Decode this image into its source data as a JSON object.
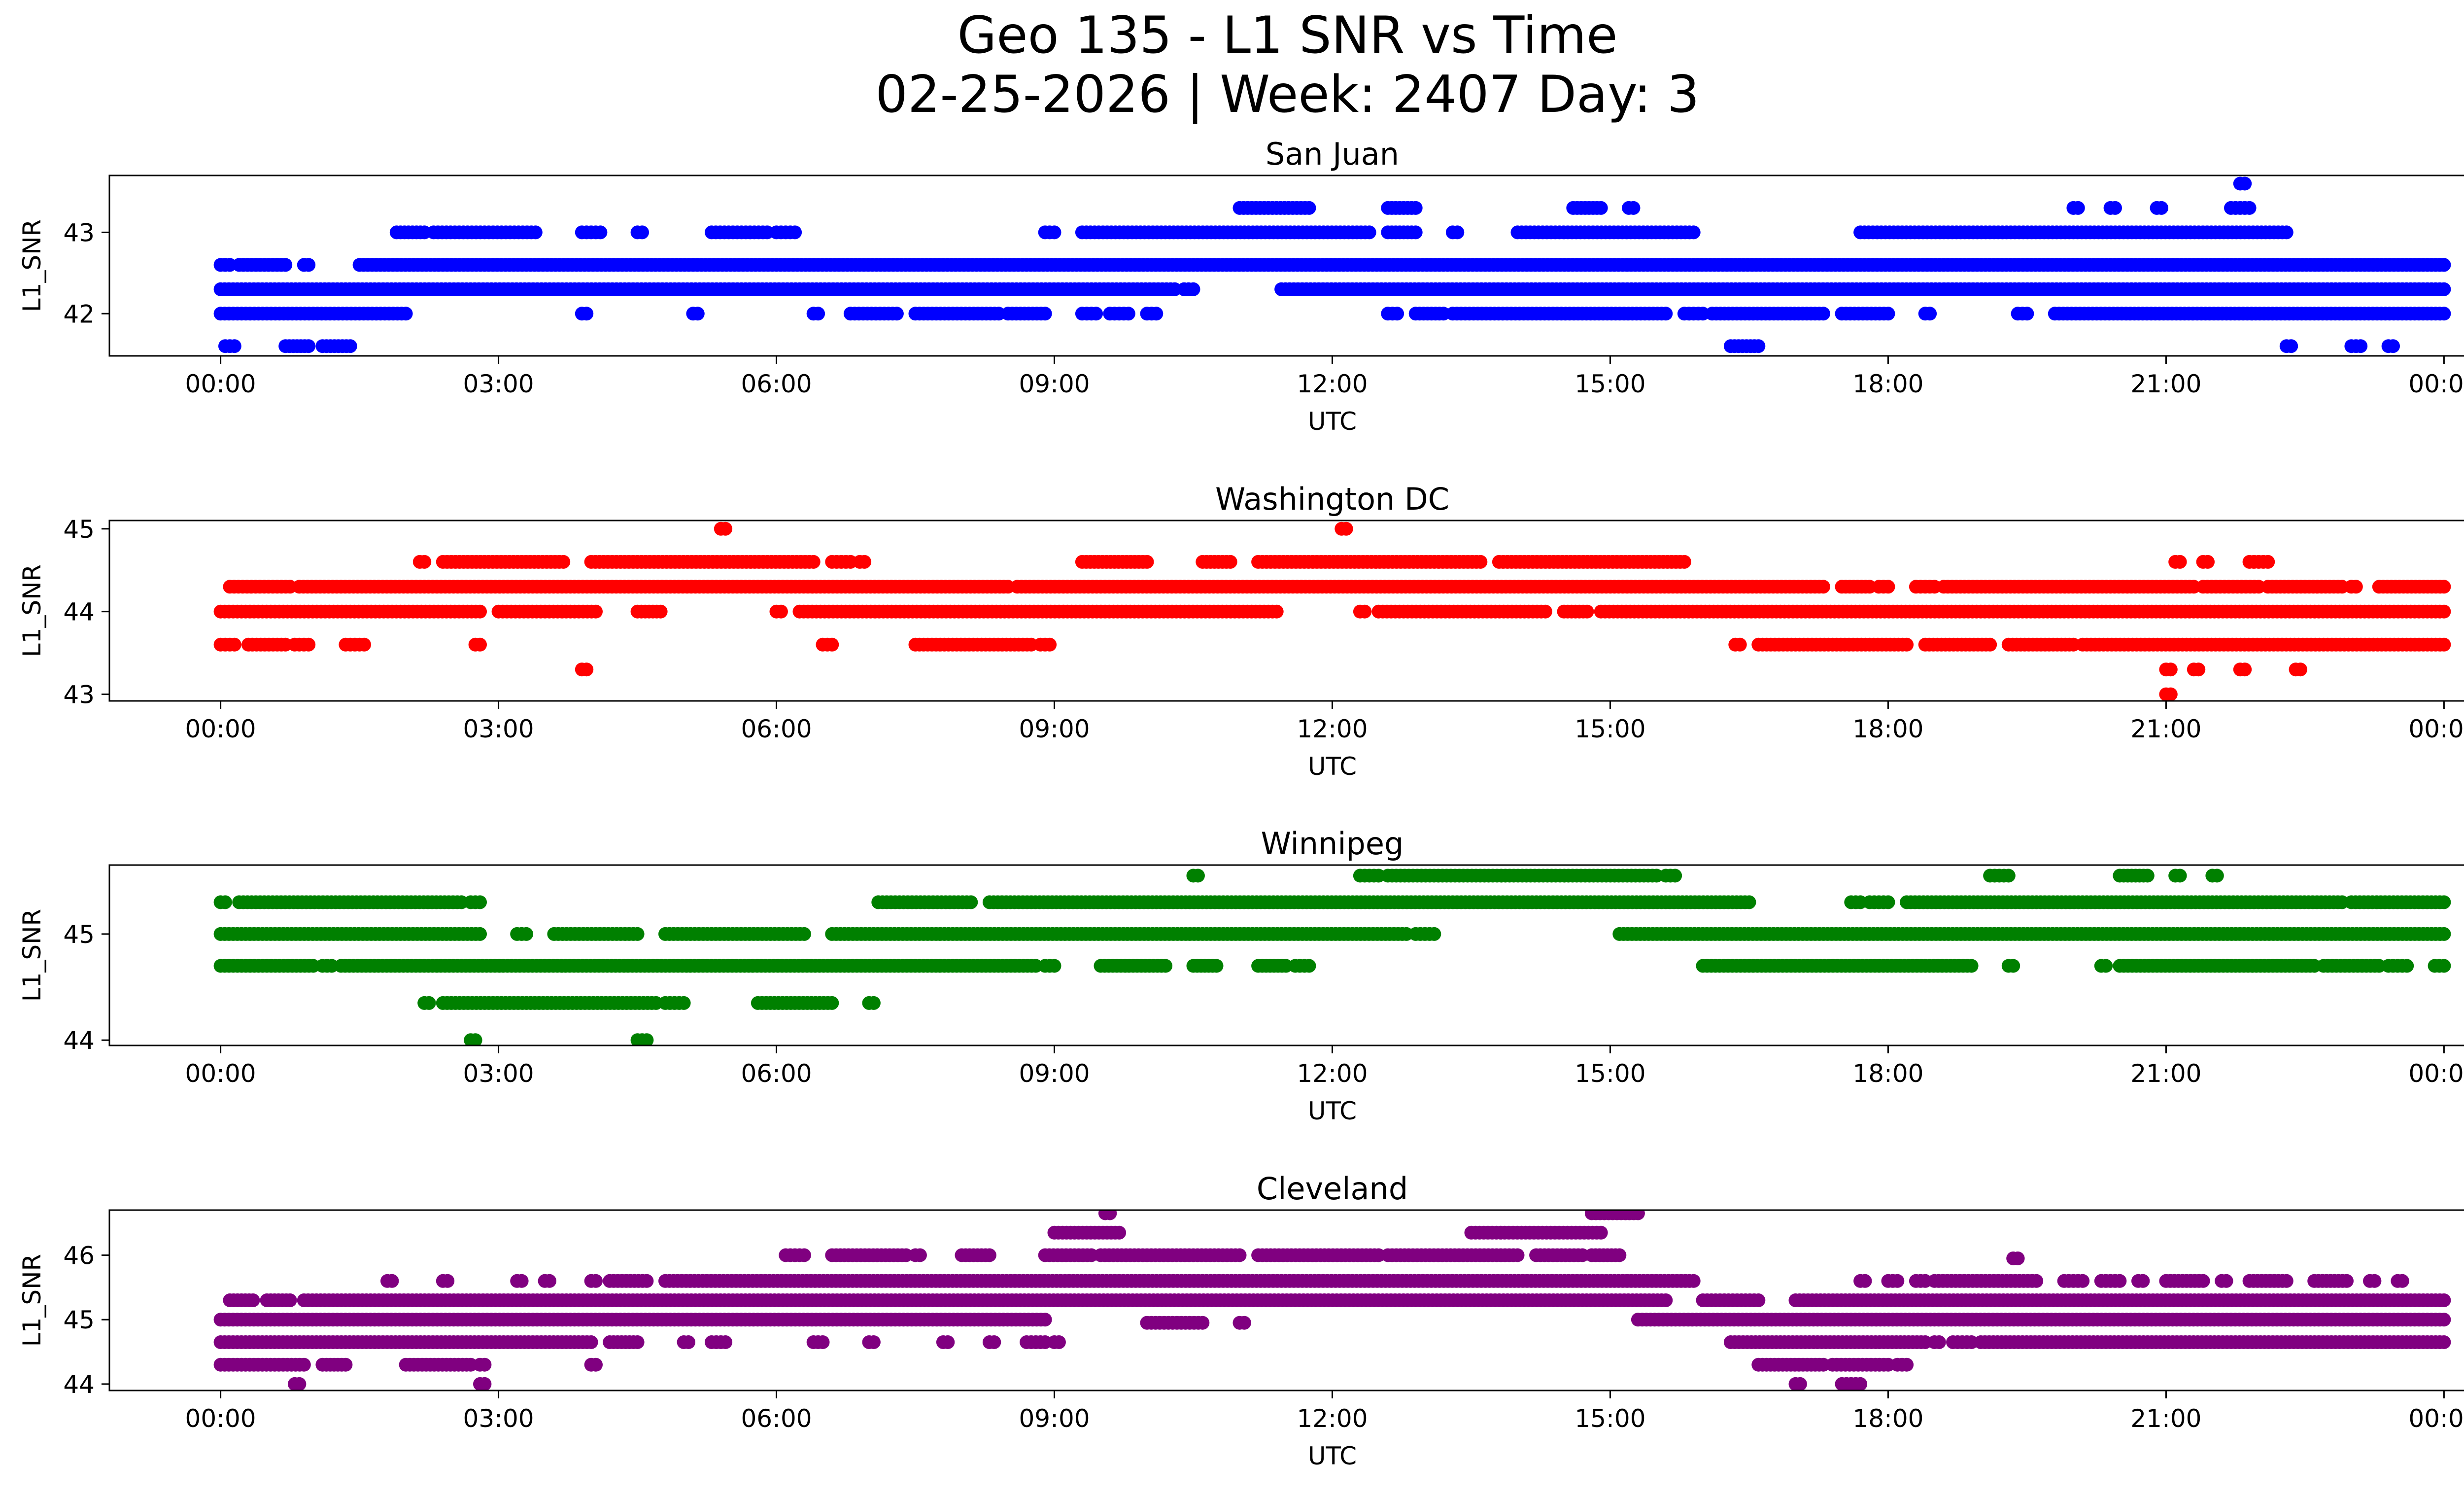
{
  "title_line1": "Geo 135 - L1 SNR vs Time",
  "title_line2": "02-25-2026 | Week: 2407 Day: 3",
  "chart_data": [
    {
      "type": "scatter",
      "title": "San Juan",
      "xlabel": "UTC",
      "ylabel": "L1_SNR",
      "color": "#0000ff",
      "ylim": [
        41.48,
        43.7
      ],
      "yticks": [
        42,
        43
      ],
      "xticks": [
        "00:00",
        "03:00",
        "06:00",
        "09:00",
        "12:00",
        "15:00",
        "18:00",
        "21:00",
        "00:00"
      ],
      "xlim_hours": [
        -1.2,
        25.2
      ],
      "bands": [
        {
          "y": 42.3,
          "segments": [
            [
              0.0,
              10.3
            ],
            [
              10.4,
              10.5
            ],
            [
              11.45,
              24.0
            ]
          ]
        },
        {
          "y": 42.6,
          "segments": [
            [
              0.0,
              0.1
            ],
            [
              0.2,
              0.7
            ],
            [
              0.9,
              0.95
            ],
            [
              1.5,
              24.0
            ]
          ]
        },
        {
          "y": 42.0,
          "segments": [
            [
              0.0,
              2.0
            ],
            [
              3.9,
              3.95
            ],
            [
              5.1,
              5.15
            ],
            [
              6.4,
              6.45
            ],
            [
              6.8,
              7.3
            ],
            [
              7.5,
              8.4
            ],
            [
              8.5,
              8.9
            ],
            [
              9.3,
              9.45
            ],
            [
              9.6,
              9.8
            ],
            [
              10.0,
              10.1
            ],
            [
              12.6,
              12.7
            ],
            [
              12.9,
              13.2
            ],
            [
              13.3,
              15.6
            ],
            [
              15.8,
              16.0
            ],
            [
              16.1,
              17.3
            ],
            [
              17.5,
              18.0
            ],
            [
              18.4,
              18.45
            ],
            [
              19.4,
              19.5
            ],
            [
              19.8,
              24.0
            ]
          ]
        },
        {
          "y": 43.0,
          "segments": [
            [
              1.9,
              2.2
            ],
            [
              2.3,
              3.4
            ],
            [
              3.9,
              4.1
            ],
            [
              4.5,
              4.55
            ],
            [
              5.3,
              5.9
            ],
            [
              6.0,
              6.2
            ],
            [
              8.9,
              9.0
            ],
            [
              9.3,
              12.4
            ],
            [
              12.6,
              12.9
            ],
            [
              13.3,
              13.35
            ],
            [
              14.0,
              15.9
            ],
            [
              17.7,
              22.3
            ]
          ]
        },
        {
          "y": 43.3,
          "segments": [
            [
              11.0,
              11.75
            ],
            [
              12.6,
              12.9
            ],
            [
              14.6,
              14.9
            ],
            [
              15.2,
              15.25
            ],
            [
              20.0,
              20.05
            ],
            [
              20.4,
              20.45
            ],
            [
              20.9,
              20.95
            ],
            [
              21.7,
              21.9
            ]
          ]
        },
        {
          "y": 41.6,
          "segments": [
            [
              0.05,
              0.15
            ],
            [
              0.7,
              0.95
            ],
            [
              1.1,
              1.4
            ],
            [
              16.3,
              16.6
            ],
            [
              22.3,
              22.35
            ],
            [
              23.0,
              23.1
            ],
            [
              23.4,
              23.45
            ]
          ]
        },
        {
          "y": 43.6,
          "segments": [
            [
              21.8,
              21.85
            ]
          ]
        }
      ]
    },
    {
      "type": "scatter",
      "title": "Washington DC",
      "xlabel": "UTC",
      "ylabel": "L1_SNR",
      "color": "#ff0000",
      "ylim": [
        42.92,
        45.1
      ],
      "yticks": [
        43,
        44,
        45
      ],
      "xticks": [
        "00:00",
        "03:00",
        "06:00",
        "09:00",
        "12:00",
        "15:00",
        "18:00",
        "21:00",
        "00:00"
      ],
      "xlim_hours": [
        -1.2,
        25.2
      ],
      "bands": [
        {
          "y": 44.0,
          "segments": [
            [
              0.0,
              2.8
            ],
            [
              3.0,
              4.05
            ],
            [
              4.5,
              4.75
            ],
            [
              6.0,
              6.05
            ],
            [
              6.25,
              11.4
            ],
            [
              12.3,
              12.35
            ],
            [
              12.5,
              14.3
            ],
            [
              14.5,
              14.75
            ],
            [
              14.9,
              24.0
            ]
          ]
        },
        {
          "y": 44.3,
          "segments": [
            [
              0.1,
              0.75
            ],
            [
              0.85,
              8.5
            ],
            [
              8.6,
              17.3
            ],
            [
              17.5,
              17.8
            ],
            [
              17.9,
              18.0
            ],
            [
              18.3,
              18.5
            ],
            [
              18.6,
              21.3
            ],
            [
              21.4,
              22.0
            ],
            [
              22.1,
              22.9
            ],
            [
              23.0,
              23.05
            ],
            [
              23.3,
              24.0
            ]
          ]
        },
        {
          "y": 43.6,
          "segments": [
            [
              0.0,
              0.15
            ],
            [
              0.3,
              0.7
            ],
            [
              0.8,
              0.95
            ],
            [
              1.35,
              1.55
            ],
            [
              2.75,
              2.8
            ],
            [
              6.5,
              6.6
            ],
            [
              7.5,
              8.75
            ],
            [
              8.85,
              8.95
            ],
            [
              16.35,
              16.4
            ],
            [
              16.6,
              18.2
            ],
            [
              18.4,
              19.1
            ],
            [
              19.3,
              20.0
            ],
            [
              20.1,
              24.0
            ]
          ]
        },
        {
          "y": 44.6,
          "segments": [
            [
              2.15,
              2.2
            ],
            [
              2.4,
              3.7
            ],
            [
              4.0,
              6.4
            ],
            [
              6.6,
              6.8
            ],
            [
              6.9,
              6.95
            ],
            [
              9.3,
              10.0
            ],
            [
              10.6,
              10.9
            ],
            [
              11.2,
              13.6
            ],
            [
              13.8,
              15.8
            ],
            [
              21.1,
              21.15
            ],
            [
              21.4,
              21.45
            ],
            [
              21.9,
              22.1
            ]
          ]
        },
        {
          "y": 45.0,
          "segments": [
            [
              5.4,
              5.45
            ],
            [
              12.1,
              12.15
            ]
          ]
        },
        {
          "y": 43.3,
          "segments": [
            [
              3.9,
              3.95
            ],
            [
              21.0,
              21.05
            ],
            [
              21.3,
              21.35
            ],
            [
              21.8,
              21.85
            ],
            [
              22.4,
              22.45
            ]
          ]
        },
        {
          "y": 43.0,
          "segments": [
            [
              21.0,
              21.05
            ]
          ]
        }
      ]
    },
    {
      "type": "scatter",
      "title": "Winnipeg",
      "xlabel": "UTC",
      "ylabel": "L1_SNR",
      "color": "#008000",
      "ylim": [
        43.95,
        45.65
      ],
      "yticks": [
        44,
        45
      ],
      "xticks": [
        "00:00",
        "03:00",
        "06:00",
        "09:00",
        "12:00",
        "15:00",
        "18:00",
        "21:00",
        "00:00"
      ],
      "xlim_hours": [
        -1.2,
        25.2
      ],
      "bands": [
        {
          "y": 45.0,
          "segments": [
            [
              0.0,
              2.8
            ],
            [
              3.2,
              3.3
            ],
            [
              3.6,
              4.5
            ],
            [
              4.8,
              6.3
            ],
            [
              6.6,
              12.8
            ],
            [
              12.9,
              13.1
            ],
            [
              15.1,
              24.0
            ]
          ]
        },
        {
          "y": 45.3,
          "segments": [
            [
              0.0,
              0.05
            ],
            [
              0.2,
              2.6
            ],
            [
              2.7,
              2.8
            ],
            [
              7.1,
              8.1
            ],
            [
              8.3,
              16.5
            ],
            [
              17.6,
              17.7
            ],
            [
              17.8,
              18.0
            ],
            [
              18.2,
              22.9
            ],
            [
              23.0,
              24.0
            ]
          ]
        },
        {
          "y": 44.7,
          "segments": [
            [
              0.0,
              1.0
            ],
            [
              1.1,
              1.2
            ],
            [
              1.3,
              8.8
            ],
            [
              8.9,
              9.0
            ],
            [
              9.5,
              10.2
            ],
            [
              10.5,
              10.75
            ],
            [
              11.2,
              11.5
            ],
            [
              11.6,
              11.75
            ],
            [
              16.0,
              18.9
            ],
            [
              19.3,
              19.35
            ],
            [
              20.3,
              20.35
            ],
            [
              20.5,
              22.6
            ],
            [
              22.7,
              23.3
            ],
            [
              23.4,
              23.6
            ],
            [
              23.9,
              24.0
            ]
          ]
        },
        {
          "y": 44.35,
          "segments": [
            [
              2.2,
              2.25
            ],
            [
              2.4,
              4.7
            ],
            [
              4.8,
              5.0
            ],
            [
              5.8,
              6.6
            ],
            [
              7.0,
              7.05
            ]
          ]
        },
        {
          "y": 45.55,
          "segments": [
            [
              10.5,
              10.55
            ],
            [
              12.3,
              12.5
            ],
            [
              12.6,
              15.5
            ],
            [
              15.6,
              15.7
            ],
            [
              19.1,
              19.3
            ],
            [
              20.5,
              20.8
            ],
            [
              21.1,
              21.15
            ],
            [
              21.5,
              21.55
            ]
          ]
        },
        {
          "y": 44.0,
          "segments": [
            [
              2.7,
              2.75
            ],
            [
              4.5,
              4.6
            ]
          ]
        }
      ]
    },
    {
      "type": "scatter",
      "title": "Cleveland",
      "xlabel": "UTC",
      "ylabel": "L1_SNR",
      "color": "#800080",
      "ylim": [
        43.9,
        46.7
      ],
      "yticks": [
        44,
        45,
        46
      ],
      "xticks": [
        "00:00",
        "03:00",
        "06:00",
        "09:00",
        "12:00",
        "15:00",
        "18:00",
        "21:00",
        "00:00"
      ],
      "xlim_hours": [
        -1.2,
        25.2
      ],
      "bands": [
        {
          "y": 45.0,
          "segments": [
            [
              0.0,
              8.9
            ],
            [
              15.3,
              24.0
            ]
          ]
        },
        {
          "y": 45.3,
          "segments": [
            [
              0.1,
              0.35
            ],
            [
              0.5,
              0.75
            ],
            [
              0.9,
              15.6
            ],
            [
              16.0,
              16.6
            ],
            [
              17.0,
              24.0
            ]
          ]
        },
        {
          "y": 44.65,
          "segments": [
            [
              0.0,
              4.0
            ],
            [
              4.2,
              4.5
            ],
            [
              5.0,
              5.05
            ],
            [
              5.3,
              5.45
            ],
            [
              6.4,
              6.5
            ],
            [
              7.0,
              7.05
            ],
            [
              7.8,
              7.85
            ],
            [
              8.3,
              8.35
            ],
            [
              8.7,
              8.9
            ],
            [
              9.0,
              9.05
            ],
            [
              16.3,
              18.4
            ],
            [
              18.5,
              18.55
            ],
            [
              18.7,
              18.9
            ],
            [
              19.0,
              24.0
            ]
          ]
        },
        {
          "y": 44.3,
          "segments": [
            [
              0.0,
              0.9
            ],
            [
              1.1,
              1.35
            ],
            [
              2.0,
              2.7
            ],
            [
              2.8,
              2.85
            ],
            [
              4.0,
              4.05
            ],
            [
              16.6,
              17.3
            ],
            [
              17.4,
              18.0
            ],
            [
              18.1,
              18.2
            ]
          ]
        },
        {
          "y": 45.6,
          "segments": [
            [
              1.8,
              1.85
            ],
            [
              2.4,
              2.45
            ],
            [
              3.2,
              3.25
            ],
            [
              3.5,
              3.55
            ],
            [
              4.0,
              4.05
            ],
            [
              4.2,
              4.6
            ],
            [
              4.8,
              15.9
            ],
            [
              17.7,
              17.75
            ],
            [
              18.0,
              18.1
            ],
            [
              18.3,
              18.4
            ],
            [
              18.5,
              19.6
            ],
            [
              19.9,
              20.1
            ],
            [
              20.3,
              20.5
            ],
            [
              20.7,
              20.75
            ],
            [
              21.0,
              21.4
            ],
            [
              21.6,
              21.65
            ],
            [
              21.9,
              22.3
            ],
            [
              22.6,
              22.95
            ],
            [
              23.2,
              23.25
            ],
            [
              23.5,
              23.55
            ]
          ]
        },
        {
          "y": 46.0,
          "segments": [
            [
              6.1,
              6.3
            ],
            [
              6.6,
              7.4
            ],
            [
              7.5,
              7.55
            ],
            [
              8.0,
              8.3
            ],
            [
              8.9,
              9.4
            ],
            [
              9.5,
              11.0
            ],
            [
              11.2,
              12.5
            ],
            [
              12.6,
              14.0
            ],
            [
              14.2,
              14.7
            ],
            [
              14.8,
              15.1
            ]
          ]
        },
        {
          "y": 45.95,
          "segments": [
            [
              19.35,
              19.4
            ]
          ]
        },
        {
          "y": 46.35,
          "segments": [
            [
              9.0,
              9.7
            ],
            [
              13.5,
              14.9
            ]
          ]
        },
        {
          "y": 46.65,
          "segments": [
            [
              9.55,
              9.6
            ],
            [
              14.8,
              15.3
            ]
          ]
        },
        {
          "y": 44.95,
          "segments": [
            [
              10.0,
              10.6
            ],
            [
              11.0,
              11.05
            ]
          ]
        },
        {
          "y": 44.0,
          "segments": [
            [
              0.8,
              0.85
            ],
            [
              2.8,
              2.85
            ],
            [
              17.0,
              17.05
            ],
            [
              17.5,
              17.7
            ]
          ]
        }
      ]
    }
  ]
}
